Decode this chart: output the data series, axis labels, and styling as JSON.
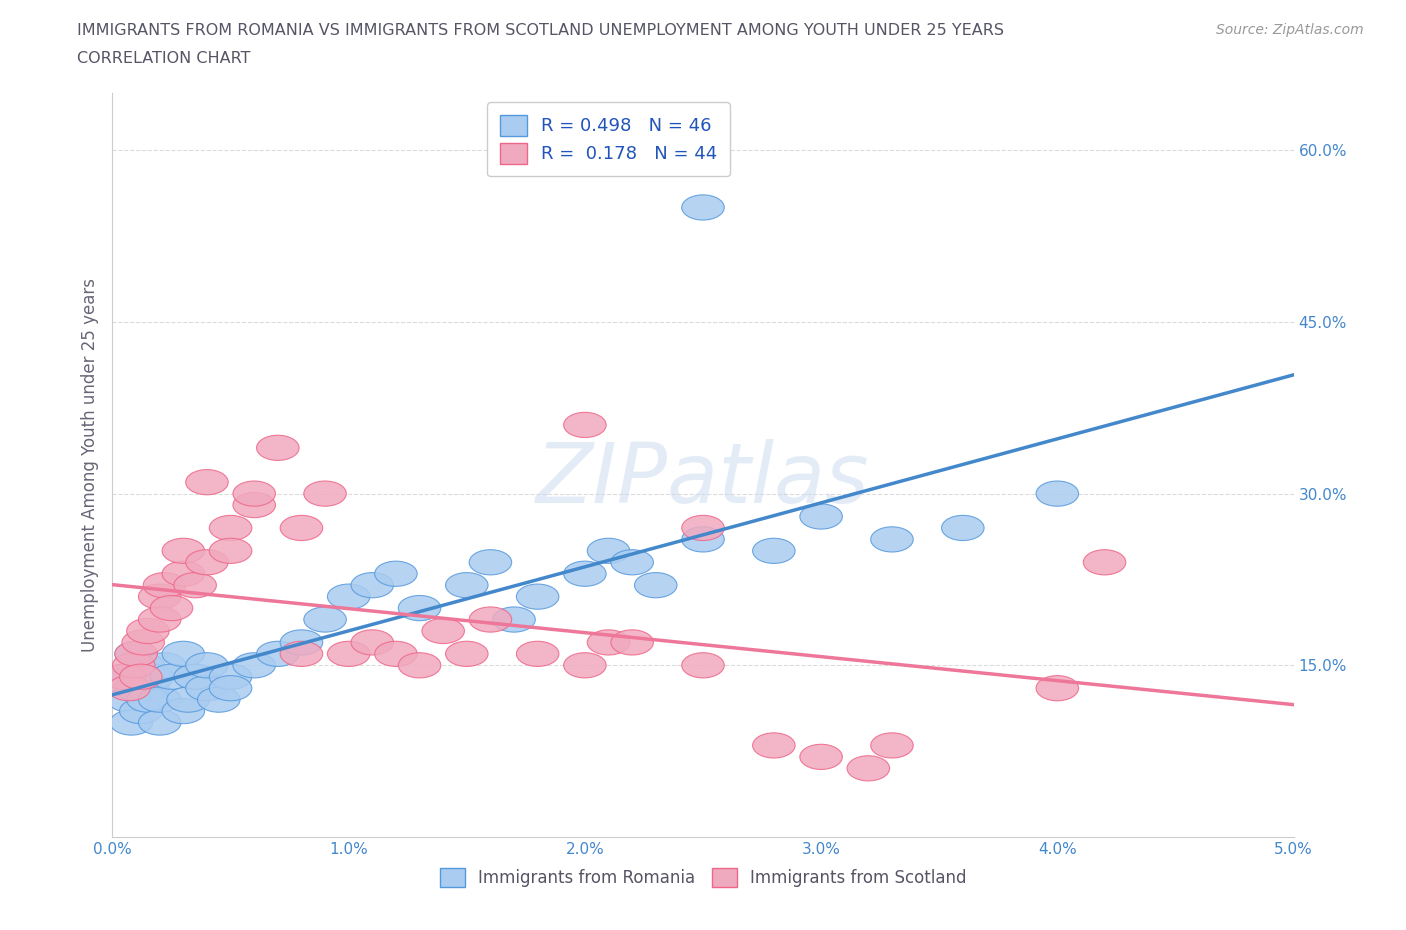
{
  "title_line1": "IMMIGRANTS FROM ROMANIA VS IMMIGRANTS FROM SCOTLAND UNEMPLOYMENT AMONG YOUTH UNDER 25 YEARS",
  "title_line2": "CORRELATION CHART",
  "source": "Source: ZipAtlas.com",
  "ylabel": "Unemployment Among Youth under 25 years",
  "xlim": [
    0.0,
    0.05
  ],
  "ylim": [
    0.0,
    0.65
  ],
  "xtick_positions": [
    0.0,
    0.01,
    0.02,
    0.03,
    0.04,
    0.05
  ],
  "xtick_labels": [
    "0.0%",
    "1.0%",
    "2.0%",
    "3.0%",
    "4.0%",
    "5.0%"
  ],
  "ytick_positions": [
    0.15,
    0.3,
    0.45,
    0.6
  ],
  "ytick_labels": [
    "15.0%",
    "30.0%",
    "45.0%",
    "60.0%"
  ],
  "romania_color": "#aaccf0",
  "scotland_color": "#f0aabf",
  "romania_edge_color": "#5599dd",
  "scotland_edge_color": "#ee6688",
  "romania_line_color": "#4488cc",
  "scotland_line_color": "#ee7799",
  "romania_R": 0.498,
  "romania_N": 46,
  "scotland_R": 0.178,
  "scotland_N": 44,
  "title_color": "#555566",
  "source_color": "#999999",
  "stat_color": "#2255bb",
  "axis_label_color": "#4488cc",
  "watermark": "ZIPatlas",
  "romania_scatter_x": [
    0.0005,
    0.0007,
    0.0008,
    0.001,
    0.001,
    0.0012,
    0.0013,
    0.0015,
    0.0015,
    0.0017,
    0.002,
    0.002,
    0.0022,
    0.0025,
    0.003,
    0.003,
    0.0032,
    0.0035,
    0.004,
    0.004,
    0.0045,
    0.005,
    0.005,
    0.006,
    0.007,
    0.008,
    0.009,
    0.01,
    0.011,
    0.012,
    0.013,
    0.015,
    0.016,
    0.017,
    0.018,
    0.02,
    0.021,
    0.022,
    0.023,
    0.025,
    0.028,
    0.03,
    0.033,
    0.036,
    0.04,
    0.025
  ],
  "romania_scatter_y": [
    0.14,
    0.12,
    0.1,
    0.13,
    0.16,
    0.11,
    0.15,
    0.13,
    0.12,
    0.14,
    0.1,
    0.12,
    0.15,
    0.14,
    0.11,
    0.16,
    0.12,
    0.14,
    0.13,
    0.15,
    0.12,
    0.14,
    0.13,
    0.15,
    0.16,
    0.17,
    0.19,
    0.21,
    0.22,
    0.23,
    0.2,
    0.22,
    0.24,
    0.19,
    0.21,
    0.23,
    0.25,
    0.24,
    0.22,
    0.26,
    0.25,
    0.28,
    0.26,
    0.27,
    0.3,
    0.55
  ],
  "scotland_scatter_x": [
    0.0005,
    0.0007,
    0.0009,
    0.001,
    0.0012,
    0.0013,
    0.0015,
    0.002,
    0.002,
    0.0022,
    0.0025,
    0.003,
    0.003,
    0.0035,
    0.004,
    0.005,
    0.005,
    0.006,
    0.007,
    0.008,
    0.009,
    0.01,
    0.011,
    0.012,
    0.013,
    0.014,
    0.015,
    0.016,
    0.018,
    0.02,
    0.021,
    0.022,
    0.025,
    0.025,
    0.028,
    0.03,
    0.032,
    0.004,
    0.006,
    0.008,
    0.04,
    0.042,
    0.033,
    0.02
  ],
  "scotland_scatter_y": [
    0.14,
    0.13,
    0.15,
    0.16,
    0.14,
    0.17,
    0.18,
    0.21,
    0.19,
    0.22,
    0.2,
    0.23,
    0.25,
    0.22,
    0.24,
    0.27,
    0.25,
    0.29,
    0.34,
    0.27,
    0.3,
    0.16,
    0.17,
    0.16,
    0.15,
    0.18,
    0.16,
    0.19,
    0.16,
    0.15,
    0.17,
    0.17,
    0.15,
    0.27,
    0.08,
    0.07,
    0.06,
    0.31,
    0.3,
    0.16,
    0.13,
    0.24,
    0.08,
    0.36
  ]
}
